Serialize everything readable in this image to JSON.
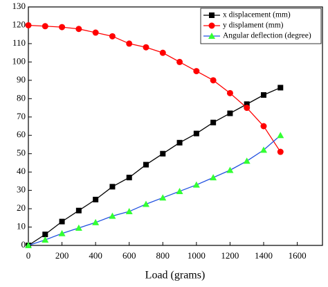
{
  "chart_data": {
    "type": "line",
    "x_label": "Load (grams)",
    "x": [
      0,
      100,
      200,
      300,
      400,
      500,
      600,
      700,
      800,
      900,
      1000,
      1100,
      1200,
      1300,
      1400,
      1500
    ],
    "series": [
      {
        "name": "x displacement (mm)",
        "color": "#000000",
        "marker": "square",
        "marker_color": "#000000",
        "values": [
          0,
          6,
          13,
          19,
          25,
          32,
          37,
          44,
          50,
          56,
          61,
          67,
          72,
          77,
          82,
          86
        ]
      },
      {
        "name": "y displament (mm)",
        "color": "#ff0000",
        "marker": "circle",
        "marker_color": "#ff0000",
        "values": [
          120,
          119.5,
          119,
          118,
          116,
          114,
          110,
          108,
          105,
          100,
          95,
          90,
          83,
          75,
          65,
          51
        ]
      },
      {
        "name": "Angular deflection (degree)",
        "color": "#1f4fe0",
        "marker": "triangle",
        "marker_color": "#33ff33",
        "values": [
          0,
          3,
          6.5,
          9.5,
          12.5,
          16,
          18.5,
          22.5,
          26,
          29.5,
          33,
          37,
          41,
          46,
          52,
          60
        ]
      }
    ],
    "xlim": [
      0,
      1750
    ],
    "xticks": [
      0,
      200,
      400,
      600,
      800,
      1000,
      1200,
      1400,
      1600
    ],
    "ylim": [
      0,
      130
    ],
    "yticks": [
      0,
      10,
      20,
      30,
      40,
      50,
      60,
      70,
      80,
      90,
      100,
      110,
      120,
      130
    ],
    "legend": "top-right",
    "grid": false
  }
}
